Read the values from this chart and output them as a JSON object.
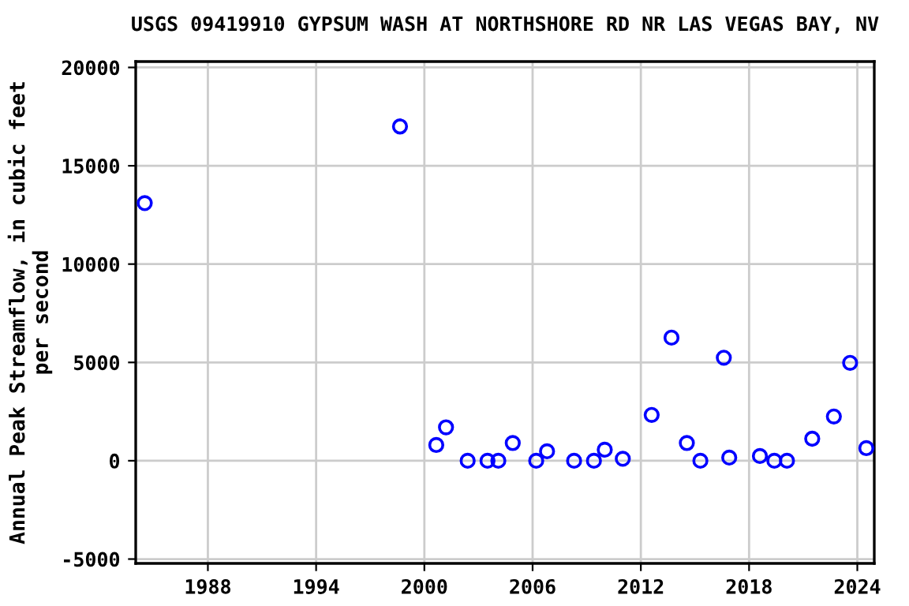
{
  "chart_data": {
    "type": "scatter",
    "title": "USGS 09419910 GYPSUM WASH AT NORTHSHORE RD NR LAS VEGAS BAY, NV",
    "ylabel": "Annual Peak Streamflow, in cubic feet\nper second",
    "x": [
      1984.5,
      1998.65,
      2000.66,
      2001.2,
      2002.4,
      2003.5,
      2004.1,
      2004.9,
      2006.2,
      2006.8,
      2008.3,
      2009.4,
      2010.0,
      2011.0,
      2012.6,
      2013.7,
      2014.55,
      2015.3,
      2016.6,
      2016.9,
      2018.6,
      2019.4,
      2020.1,
      2021.5,
      2022.7,
      2023.6,
      2024.5
    ],
    "values": [
      13100,
      17000,
      800,
      1700,
      0,
      0,
      0,
      900,
      0,
      480,
      0,
      0,
      560,
      100,
      2330,
      6260,
      900,
      0,
      5240,
      160,
      240,
      0,
      0,
      1120,
      2250,
      4980,
      640
    ],
    "color": "#0000ff",
    "marker": "circle",
    "grid": true,
    "xlim": [
      1984.0,
      2024.94
    ],
    "xticks": [
      1988,
      1994,
      2000,
      2006,
      2012,
      2018,
      2024
    ],
    "ylim": [
      -5220,
      20300
    ],
    "yticks": [
      -5000,
      0,
      5000,
      10000,
      15000,
      20000
    ]
  }
}
